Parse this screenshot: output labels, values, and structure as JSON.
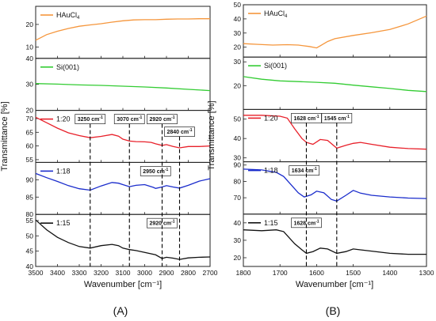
{
  "chart_data": [
    {
      "type": "line",
      "panel_label": "(A)",
      "xlabel": "Wavenumber [cm⁻¹]",
      "ylabel": "Transmittance [%]",
      "xlim": [
        3500,
        2700
      ],
      "xticks": [
        3500,
        3400,
        3300,
        3200,
        3100,
        3000,
        2900,
        2800,
        2700
      ],
      "xtick_labels": [
        "3500",
        "3400",
        "3300",
        "3200",
        "3100",
        "3000",
        "2900",
        "2800",
        "2700"
      ],
      "vlines": [
        3250,
        3070,
        2920,
        2840
      ],
      "subplots": [
        {
          "legend": "HAuCl",
          "legend_sub": "4",
          "color": "#f5963c",
          "ylim": [
            5,
            28
          ],
          "yticks": [
            10,
            20
          ],
          "ytick_labels": [
            "10",
            "20"
          ],
          "x": [
            3500,
            3450,
            3400,
            3350,
            3300,
            3250,
            3200,
            3150,
            3100,
            3050,
            3000,
            2950,
            2900,
            2850,
            2800,
            2750,
            2700
          ],
          "y": [
            13,
            15.5,
            17,
            18.2,
            19.2,
            19.8,
            20.3,
            21,
            21.6,
            22,
            22.1,
            22.1,
            22.3,
            22.4,
            22.4,
            22.5,
            22.5
          ],
          "annotations": []
        },
        {
          "legend": "Si(001)",
          "legend_sub": "",
          "color": "#33cc33",
          "ylim": [
            20,
            40
          ],
          "yticks": [
            20,
            30,
            40
          ],
          "ytick_labels": [
            "20",
            "30",
            "40"
          ],
          "x": [
            3500,
            3400,
            3300,
            3200,
            3100,
            3000,
            2900,
            2800,
            2700
          ],
          "y": [
            30.3,
            30.1,
            29.8,
            29.6,
            29.3,
            29,
            28.6,
            28.1,
            27.6
          ],
          "annotations": []
        },
        {
          "legend": "1:20",
          "legend_sub": "",
          "color": "#e8202a",
          "ylim": [
            54,
            73
          ],
          "yticks": [
            55,
            60,
            65,
            70
          ],
          "ytick_labels": [
            "55",
            "60",
            "65",
            "70"
          ],
          "x": [
            3500,
            3450,
            3400,
            3350,
            3300,
            3250,
            3200,
            3150,
            3120,
            3100,
            3070,
            3040,
            3000,
            2970,
            2950,
            2920,
            2900,
            2870,
            2840,
            2800,
            2750,
            2700
          ],
          "y": [
            70.5,
            68.5,
            66.5,
            64.8,
            63.8,
            63,
            63.5,
            64.2,
            63.6,
            62.5,
            61.8,
            61.6,
            61.5,
            61.3,
            60.8,
            60.2,
            60.5,
            59.8,
            59.3,
            59.8,
            59.8,
            60
          ],
          "annotations": [
            {
              "text": "3250 cm",
              "sup": "-1",
              "at": 3250,
              "row": 0
            },
            {
              "text": "3070 cm",
              "sup": "-1",
              "at": 3070,
              "row": 0
            },
            {
              "text": "2920 cm",
              "sup": "-1",
              "at": 2920,
              "row": 0
            },
            {
              "text": "2840 cm",
              "sup": "-1",
              "at": 2840,
              "row": 1
            }
          ]
        },
        {
          "legend": "1:18",
          "legend_sub": "",
          "color": "#1a2ccc",
          "ylim": [
            80,
            95
          ],
          "yticks": [
            80,
            85,
            90
          ],
          "ytick_labels": [
            "80",
            "85",
            "90"
          ],
          "x": [
            3500,
            3450,
            3400,
            3350,
            3300,
            3250,
            3200,
            3150,
            3120,
            3100,
            3070,
            3040,
            3000,
            2960,
            2950,
            2920,
            2900,
            2870,
            2840,
            2800,
            2750,
            2700
          ],
          "y": [
            91.8,
            90.6,
            89.5,
            88.3,
            87.4,
            87,
            88.2,
            89.2,
            89,
            88.6,
            88,
            88.4,
            88.6,
            87.8,
            87.5,
            87.9,
            88.3,
            87.9,
            87.6,
            88.4,
            89.6,
            90.3
          ],
          "annotations": [
            {
              "text": "2950 cm",
              "sup": "-1",
              "at": 2950,
              "row": 0
            }
          ]
        },
        {
          "legend": "1:15",
          "legend_sub": "",
          "color": "#111111",
          "ylim": [
            40,
            57
          ],
          "yticks": [
            40,
            45,
            50,
            55
          ],
          "ytick_labels": [
            "40",
            "45",
            "50",
            "55"
          ],
          "x": [
            3500,
            3450,
            3400,
            3350,
            3300,
            3250,
            3200,
            3150,
            3120,
            3100,
            3070,
            3040,
            3000,
            2950,
            2920,
            2900,
            2870,
            2840,
            2800,
            2750,
            2700
          ],
          "y": [
            55.2,
            52,
            49.5,
            47.8,
            46.5,
            46,
            46.8,
            47.2,
            46.8,
            46,
            45.5,
            45.2,
            44.6,
            43.8,
            42.6,
            43,
            42.7,
            42.3,
            42.8,
            43,
            43.1
          ],
          "annotations": [
            {
              "text": "2920 cm",
              "sup": "-1",
              "at": 2920,
              "row": 0
            }
          ]
        }
      ]
    },
    {
      "type": "line",
      "panel_label": "(B)",
      "xlabel": "Wavenumber [cm⁻¹]",
      "ylabel": "Transmittance [%]",
      "xlim": [
        1800,
        1300
      ],
      "xticks": [
        1800,
        1700,
        1600,
        1500,
        1400,
        1300
      ],
      "xtick_labels": [
        "1800",
        "1700",
        "1600",
        "1500",
        "1400",
        "1300"
      ],
      "vlines": [
        1628,
        1545
      ],
      "subplots": [
        {
          "legend": "HAuCl",
          "legend_sub": "4",
          "color": "#f5963c",
          "ylim": [
            13,
            50
          ],
          "yticks": [
            20,
            30,
            40,
            50
          ],
          "ytick_labels": [
            "20",
            "30",
            "40",
            "50"
          ],
          "x": [
            1800,
            1760,
            1720,
            1680,
            1650,
            1620,
            1600,
            1590,
            1570,
            1550,
            1500,
            1450,
            1400,
            1350,
            1300
          ],
          "y": [
            22.5,
            22,
            21.5,
            21.8,
            21.5,
            20.5,
            19.5,
            21,
            24,
            26,
            28.3,
            30.2,
            32.5,
            36.5,
            42
          ],
          "annotations": []
        },
        {
          "legend": "Si(001)",
          "legend_sub": "",
          "color": "#33cc33",
          "ylim": [
            10,
            32
          ],
          "yticks": [
            20,
            30
          ],
          "ytick_labels": [
            "20",
            "30"
          ],
          "x": [
            1800,
            1750,
            1700,
            1650,
            1600,
            1550,
            1500,
            1450,
            1400,
            1350,
            1300
          ],
          "y": [
            23.8,
            22.7,
            22,
            21.7,
            21.4,
            21,
            20.2,
            19.5,
            18.8,
            18,
            17.5
          ],
          "annotations": []
        },
        {
          "legend": "1:20",
          "legend_sub": "",
          "color": "#e8202a",
          "ylim": [
            28,
            55
          ],
          "yticks": [
            30,
            40,
            50
          ],
          "ytick_labels": [
            "30",
            "40",
            "50"
          ],
          "x": [
            1800,
            1750,
            1700,
            1680,
            1660,
            1640,
            1628,
            1610,
            1590,
            1570,
            1545,
            1520,
            1500,
            1480,
            1450,
            1400,
            1350,
            1300
          ],
          "y": [
            52,
            52,
            51.5,
            50.5,
            45,
            40,
            38,
            37,
            39.5,
            39,
            35,
            36.5,
            37.5,
            38,
            37,
            35.5,
            34.8,
            34.5
          ],
          "annotations": [
            {
              "text": "1628 cm",
              "sup": "-1",
              "at": 1628,
              "row": 0
            },
            {
              "text": "1545 cm",
              "sup": "-1",
              "at": 1545,
              "row": 0
            }
          ]
        },
        {
          "legend": "1:18",
          "legend_sub": "",
          "color": "#1a2ccc",
          "ylim": [
            60,
            92
          ],
          "yticks": [
            70,
            80,
            90
          ],
          "ytick_labels": [
            "70",
            "80",
            "90"
          ],
          "x": [
            1800,
            1750,
            1710,
            1690,
            1670,
            1650,
            1634,
            1615,
            1600,
            1580,
            1560,
            1545,
            1520,
            1500,
            1480,
            1450,
            1400,
            1350,
            1300
          ],
          "y": [
            87.5,
            87,
            85.5,
            83,
            78,
            73,
            70.5,
            71.8,
            74,
            73,
            69,
            68,
            71.5,
            74.5,
            72.8,
            71.5,
            70.5,
            69.8,
            69.5
          ],
          "annotations": [
            {
              "text": "1634 cm",
              "sup": "-1",
              "at": 1634,
              "row": 0
            }
          ]
        },
        {
          "legend": "1:15",
          "legend_sub": "",
          "color": "#111111",
          "ylim": [
            15,
            45
          ],
          "yticks": [
            20,
            30,
            40
          ],
          "ytick_labels": [
            "20",
            "30",
            "40"
          ],
          "x": [
            1800,
            1750,
            1710,
            1690,
            1660,
            1640,
            1628,
            1610,
            1590,
            1570,
            1545,
            1520,
            1500,
            1480,
            1450,
            1400,
            1350,
            1300
          ],
          "y": [
            36,
            35.5,
            36,
            35,
            28,
            24.5,
            22.5,
            23.5,
            25.5,
            25,
            22.5,
            23.5,
            25,
            24.5,
            23.8,
            22.5,
            22,
            22
          ],
          "annotations": [
            {
              "text": "1628 cm",
              "sup": "-1",
              "at": 1628,
              "row": 0
            }
          ]
        }
      ]
    }
  ]
}
